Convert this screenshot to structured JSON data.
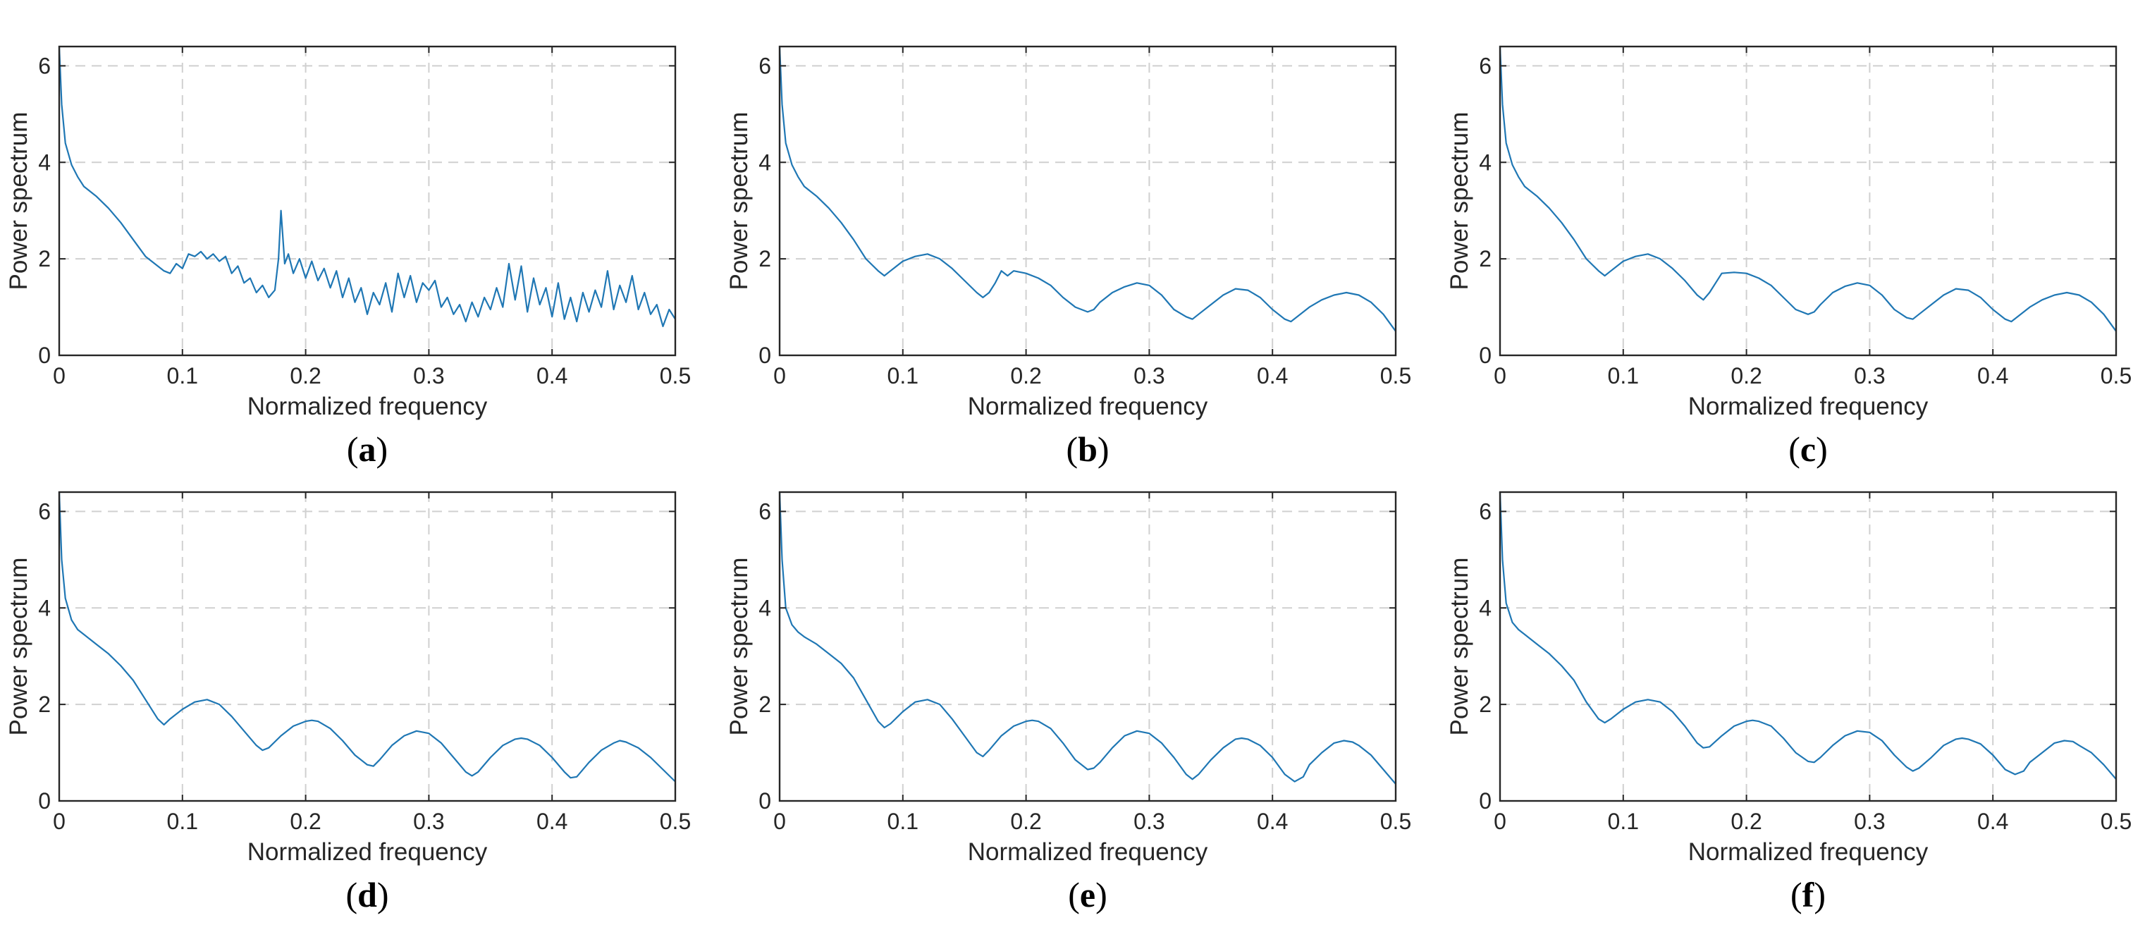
{
  "colors": {
    "line": "#1f77b4",
    "grid": "#d0d0d0",
    "axis": "#262626"
  },
  "chart_data": [
    {
      "type": "line",
      "caption_letter": "a",
      "xlabel": "Normalized frequency",
      "ylabel": "Power spectrum",
      "xlim": [
        0,
        0.5
      ],
      "ylim": [
        0,
        6.4
      ],
      "xticks": [
        "0",
        "0.1",
        "0.2",
        "0.3",
        "0.4",
        "0.5"
      ],
      "yticks": [
        "0",
        "2",
        "4",
        "6"
      ],
      "grid": true,
      "x": [
        0,
        0.002,
        0.005,
        0.01,
        0.015,
        0.02,
        0.03,
        0.04,
        0.05,
        0.06,
        0.07,
        0.08,
        0.085,
        0.09,
        0.095,
        0.1,
        0.105,
        0.11,
        0.115,
        0.12,
        0.125,
        0.13,
        0.135,
        0.14,
        0.145,
        0.15,
        0.155,
        0.16,
        0.165,
        0.17,
        0.175,
        0.178,
        0.18,
        0.183,
        0.186,
        0.19,
        0.195,
        0.2,
        0.205,
        0.21,
        0.215,
        0.22,
        0.225,
        0.23,
        0.235,
        0.24,
        0.245,
        0.25,
        0.255,
        0.26,
        0.265,
        0.27,
        0.275,
        0.28,
        0.285,
        0.29,
        0.295,
        0.3,
        0.305,
        0.31,
        0.315,
        0.32,
        0.325,
        0.33,
        0.335,
        0.34,
        0.345,
        0.35,
        0.355,
        0.36,
        0.365,
        0.37,
        0.375,
        0.38,
        0.385,
        0.39,
        0.395,
        0.4,
        0.405,
        0.41,
        0.415,
        0.42,
        0.425,
        0.43,
        0.435,
        0.44,
        0.445,
        0.45,
        0.455,
        0.46,
        0.465,
        0.47,
        0.475,
        0.48,
        0.485,
        0.49,
        0.495,
        0.5
      ],
      "values": [
        6.4,
        5.2,
        4.4,
        3.95,
        3.7,
        3.5,
        3.3,
        3.05,
        2.75,
        2.4,
        2.05,
        1.85,
        1.75,
        1.7,
        1.9,
        1.8,
        2.1,
        2.05,
        2.15,
        2.0,
        2.1,
        1.95,
        2.05,
        1.7,
        1.85,
        1.5,
        1.6,
        1.3,
        1.45,
        1.2,
        1.35,
        2.0,
        3.0,
        1.9,
        2.1,
        1.7,
        2.0,
        1.6,
        1.95,
        1.55,
        1.8,
        1.4,
        1.75,
        1.2,
        1.6,
        1.1,
        1.4,
        0.85,
        1.3,
        1.05,
        1.5,
        0.9,
        1.7,
        1.2,
        1.65,
        1.1,
        1.5,
        1.35,
        1.55,
        1.0,
        1.2,
        0.85,
        1.05,
        0.7,
        1.1,
        0.8,
        1.2,
        0.95,
        1.4,
        1.0,
        1.9,
        1.15,
        1.85,
        0.9,
        1.6,
        1.05,
        1.4,
        0.8,
        1.5,
        0.75,
        1.2,
        0.7,
        1.3,
        0.9,
        1.35,
        1.0,
        1.75,
        0.95,
        1.45,
        1.1,
        1.65,
        0.95,
        1.3,
        0.85,
        1.05,
        0.6,
        0.95,
        0.75
      ]
    },
    {
      "type": "line",
      "caption_letter": "b",
      "xlabel": "Normalized frequency",
      "ylabel": "Power spectrum",
      "xlim": [
        0,
        0.5
      ],
      "ylim": [
        0,
        6.4
      ],
      "xticks": [
        "0",
        "0.1",
        "0.2",
        "0.3",
        "0.4",
        "0.5"
      ],
      "yticks": [
        "0",
        "2",
        "4",
        "6"
      ],
      "grid": true,
      "x": [
        0,
        0.002,
        0.005,
        0.01,
        0.015,
        0.02,
        0.03,
        0.04,
        0.05,
        0.06,
        0.07,
        0.08,
        0.085,
        0.09,
        0.1,
        0.11,
        0.12,
        0.13,
        0.14,
        0.15,
        0.16,
        0.165,
        0.17,
        0.175,
        0.18,
        0.185,
        0.19,
        0.2,
        0.21,
        0.22,
        0.23,
        0.24,
        0.25,
        0.255,
        0.26,
        0.27,
        0.28,
        0.29,
        0.3,
        0.31,
        0.32,
        0.33,
        0.335,
        0.34,
        0.35,
        0.36,
        0.37,
        0.38,
        0.39,
        0.4,
        0.41,
        0.415,
        0.42,
        0.43,
        0.44,
        0.45,
        0.46,
        0.47,
        0.48,
        0.49,
        0.5
      ],
      "values": [
        6.4,
        5.2,
        4.4,
        3.95,
        3.7,
        3.5,
        3.3,
        3.05,
        2.75,
        2.4,
        2.0,
        1.75,
        1.65,
        1.75,
        1.95,
        2.05,
        2.1,
        2.0,
        1.8,
        1.55,
        1.3,
        1.2,
        1.3,
        1.5,
        1.75,
        1.65,
        1.75,
        1.7,
        1.6,
        1.45,
        1.2,
        1.0,
        0.9,
        0.95,
        1.1,
        1.3,
        1.42,
        1.5,
        1.45,
        1.25,
        0.95,
        0.8,
        0.75,
        0.85,
        1.05,
        1.25,
        1.38,
        1.35,
        1.2,
        0.95,
        0.75,
        0.7,
        0.8,
        1.0,
        1.15,
        1.25,
        1.3,
        1.25,
        1.1,
        0.85,
        0.5
      ]
    },
    {
      "type": "line",
      "caption_letter": "c",
      "xlabel": "Normalized frequency",
      "ylabel": "Power spectrum",
      "xlim": [
        0,
        0.5
      ],
      "ylim": [
        0,
        6.4
      ],
      "xticks": [
        "0",
        "0.1",
        "0.2",
        "0.3",
        "0.4",
        "0.5"
      ],
      "yticks": [
        "0",
        "2",
        "4",
        "6"
      ],
      "grid": true,
      "x": [
        0,
        0.002,
        0.005,
        0.01,
        0.015,
        0.02,
        0.03,
        0.04,
        0.05,
        0.06,
        0.07,
        0.08,
        0.085,
        0.09,
        0.1,
        0.11,
        0.12,
        0.13,
        0.14,
        0.15,
        0.16,
        0.165,
        0.17,
        0.175,
        0.18,
        0.19,
        0.2,
        0.21,
        0.22,
        0.23,
        0.24,
        0.25,
        0.255,
        0.26,
        0.27,
        0.28,
        0.29,
        0.3,
        0.31,
        0.32,
        0.33,
        0.335,
        0.34,
        0.35,
        0.36,
        0.37,
        0.38,
        0.39,
        0.4,
        0.41,
        0.415,
        0.42,
        0.43,
        0.44,
        0.45,
        0.46,
        0.47,
        0.48,
        0.49,
        0.5
      ],
      "values": [
        6.4,
        5.2,
        4.4,
        3.95,
        3.7,
        3.5,
        3.3,
        3.05,
        2.75,
        2.4,
        2.0,
        1.75,
        1.65,
        1.75,
        1.95,
        2.05,
        2.1,
        2.0,
        1.8,
        1.55,
        1.25,
        1.15,
        1.3,
        1.5,
        1.7,
        1.72,
        1.7,
        1.6,
        1.45,
        1.2,
        0.95,
        0.85,
        0.9,
        1.05,
        1.3,
        1.43,
        1.5,
        1.45,
        1.25,
        0.95,
        0.78,
        0.75,
        0.85,
        1.05,
        1.25,
        1.38,
        1.35,
        1.2,
        0.95,
        0.75,
        0.7,
        0.8,
        1.0,
        1.15,
        1.25,
        1.3,
        1.25,
        1.1,
        0.85,
        0.5
      ]
    },
    {
      "type": "line",
      "caption_letter": "d",
      "xlabel": "Normalized frequency",
      "ylabel": "Power spectrum",
      "xlim": [
        0,
        0.5
      ],
      "ylim": [
        0,
        6.4
      ],
      "xticks": [
        "0",
        "0.1",
        "0.2",
        "0.3",
        "0.4",
        "0.5"
      ],
      "yticks": [
        "0",
        "2",
        "4",
        "6"
      ],
      "grid": true,
      "x": [
        0,
        0.002,
        0.005,
        0.01,
        0.015,
        0.02,
        0.03,
        0.04,
        0.05,
        0.06,
        0.07,
        0.08,
        0.085,
        0.09,
        0.1,
        0.11,
        0.12,
        0.13,
        0.14,
        0.15,
        0.16,
        0.165,
        0.17,
        0.18,
        0.19,
        0.2,
        0.205,
        0.21,
        0.22,
        0.23,
        0.24,
        0.25,
        0.255,
        0.26,
        0.27,
        0.28,
        0.29,
        0.3,
        0.31,
        0.32,
        0.33,
        0.335,
        0.34,
        0.35,
        0.36,
        0.37,
        0.375,
        0.38,
        0.39,
        0.4,
        0.41,
        0.415,
        0.42,
        0.43,
        0.44,
        0.45,
        0.455,
        0.46,
        0.47,
        0.48,
        0.49,
        0.5
      ],
      "values": [
        6.4,
        5.0,
        4.2,
        3.75,
        3.55,
        3.45,
        3.25,
        3.05,
        2.8,
        2.5,
        2.1,
        1.7,
        1.58,
        1.7,
        1.9,
        2.05,
        2.1,
        2.0,
        1.75,
        1.45,
        1.15,
        1.05,
        1.1,
        1.35,
        1.55,
        1.65,
        1.67,
        1.65,
        1.5,
        1.25,
        0.95,
        0.75,
        0.72,
        0.85,
        1.15,
        1.35,
        1.45,
        1.4,
        1.2,
        0.9,
        0.6,
        0.52,
        0.6,
        0.9,
        1.15,
        1.28,
        1.3,
        1.28,
        1.15,
        0.9,
        0.6,
        0.48,
        0.5,
        0.8,
        1.05,
        1.2,
        1.25,
        1.22,
        1.1,
        0.9,
        0.65,
        0.4
      ]
    },
    {
      "type": "line",
      "caption_letter": "e",
      "xlabel": "Normalized frequency",
      "ylabel": "Power spectrum",
      "xlim": [
        0,
        0.5
      ],
      "ylim": [
        0,
        6.4
      ],
      "xticks": [
        "0",
        "0.1",
        "0.2",
        "0.3",
        "0.4",
        "0.5"
      ],
      "yticks": [
        "0",
        "2",
        "4",
        "6"
      ],
      "grid": true,
      "x": [
        0,
        0.002,
        0.005,
        0.01,
        0.015,
        0.02,
        0.03,
        0.04,
        0.05,
        0.06,
        0.07,
        0.08,
        0.085,
        0.09,
        0.1,
        0.11,
        0.12,
        0.13,
        0.14,
        0.15,
        0.16,
        0.165,
        0.17,
        0.18,
        0.19,
        0.2,
        0.205,
        0.21,
        0.22,
        0.23,
        0.24,
        0.25,
        0.255,
        0.26,
        0.27,
        0.28,
        0.29,
        0.3,
        0.31,
        0.32,
        0.33,
        0.335,
        0.34,
        0.35,
        0.36,
        0.37,
        0.375,
        0.38,
        0.39,
        0.4,
        0.41,
        0.418,
        0.425,
        0.43,
        0.44,
        0.45,
        0.458,
        0.465,
        0.47,
        0.48,
        0.49,
        0.5
      ],
      "values": [
        6.4,
        5.0,
        4.0,
        3.65,
        3.5,
        3.4,
        3.25,
        3.05,
        2.85,
        2.55,
        2.1,
        1.65,
        1.52,
        1.6,
        1.85,
        2.05,
        2.1,
        2.0,
        1.7,
        1.35,
        1.0,
        0.92,
        1.05,
        1.35,
        1.55,
        1.65,
        1.67,
        1.65,
        1.5,
        1.2,
        0.85,
        0.65,
        0.68,
        0.8,
        1.1,
        1.35,
        1.45,
        1.4,
        1.2,
        0.9,
        0.55,
        0.45,
        0.55,
        0.85,
        1.1,
        1.28,
        1.3,
        1.28,
        1.15,
        0.9,
        0.55,
        0.4,
        0.5,
        0.75,
        1.0,
        1.2,
        1.25,
        1.22,
        1.15,
        0.95,
        0.65,
        0.35
      ]
    },
    {
      "type": "line",
      "caption_letter": "f",
      "xlabel": "Normalized frequency",
      "ylabel": "Power spectrum",
      "xlim": [
        0,
        0.5
      ],
      "ylim": [
        0,
        6.4
      ],
      "xticks": [
        "0",
        "0.1",
        "0.2",
        "0.3",
        "0.4",
        "0.5"
      ],
      "yticks": [
        "0",
        "2",
        "4",
        "6"
      ],
      "grid": true,
      "x": [
        0,
        0.002,
        0.005,
        0.01,
        0.015,
        0.02,
        0.03,
        0.04,
        0.05,
        0.06,
        0.07,
        0.08,
        0.085,
        0.09,
        0.1,
        0.11,
        0.12,
        0.13,
        0.14,
        0.15,
        0.16,
        0.165,
        0.17,
        0.18,
        0.19,
        0.2,
        0.205,
        0.21,
        0.22,
        0.23,
        0.24,
        0.25,
        0.255,
        0.26,
        0.27,
        0.28,
        0.29,
        0.3,
        0.31,
        0.32,
        0.33,
        0.335,
        0.34,
        0.35,
        0.36,
        0.37,
        0.375,
        0.38,
        0.39,
        0.4,
        0.41,
        0.418,
        0.425,
        0.43,
        0.44,
        0.45,
        0.458,
        0.465,
        0.47,
        0.48,
        0.49,
        0.5
      ],
      "values": [
        6.4,
        5.0,
        4.1,
        3.7,
        3.55,
        3.45,
        3.25,
        3.05,
        2.8,
        2.5,
        2.05,
        1.7,
        1.62,
        1.7,
        1.9,
        2.05,
        2.1,
        2.05,
        1.85,
        1.55,
        1.2,
        1.1,
        1.12,
        1.35,
        1.55,
        1.65,
        1.67,
        1.65,
        1.55,
        1.3,
        1.0,
        0.82,
        0.8,
        0.9,
        1.15,
        1.35,
        1.45,
        1.42,
        1.25,
        0.95,
        0.7,
        0.62,
        0.68,
        0.9,
        1.15,
        1.28,
        1.3,
        1.28,
        1.18,
        0.95,
        0.65,
        0.55,
        0.62,
        0.8,
        1.0,
        1.2,
        1.25,
        1.23,
        1.15,
        1.0,
        0.75,
        0.45
      ]
    }
  ]
}
